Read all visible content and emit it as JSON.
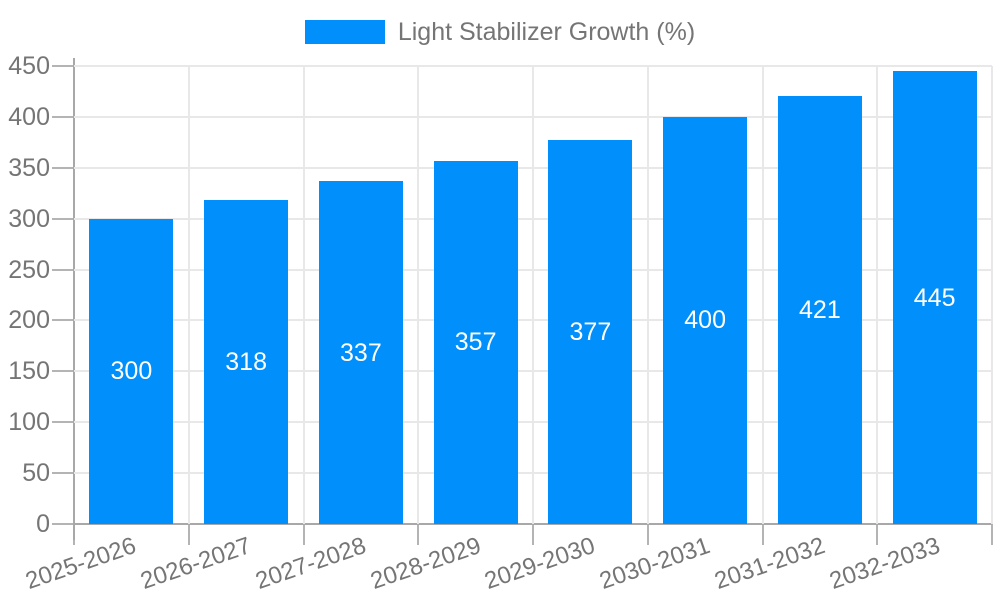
{
  "legend": {
    "label": "Light Stabilizer Growth (%)"
  },
  "chart_data": {
    "type": "bar",
    "title": "",
    "xlabel": "",
    "ylabel": "",
    "categories": [
      "2025-2026",
      "2026-2027",
      "2027-2028",
      "2028-2029",
      "2029-2030",
      "2030-2031",
      "2031-2032",
      "2032-2033"
    ],
    "series": [
      {
        "name": "Light Stabilizer Growth (%)",
        "values": [
          300,
          318,
          337,
          357,
          377,
          400,
          421,
          445
        ]
      }
    ],
    "data_labels": [
      "300",
      "318",
      "337",
      "357",
      "377",
      "400",
      "421",
      "445"
    ],
    "ylim": [
      0,
      450
    ],
    "ytick_step": 50,
    "ytick_labels": [
      "0",
      "50",
      "100",
      "150",
      "200",
      "250",
      "300",
      "350",
      "400",
      "450"
    ],
    "grid": true,
    "legend_position": "top-center",
    "bar_color": "#008FFB",
    "value_label_color": "#ffffff",
    "axis_label_color": "#757575",
    "grid_color": "#e8e8e8",
    "axis_color": "#a8a8a8"
  }
}
